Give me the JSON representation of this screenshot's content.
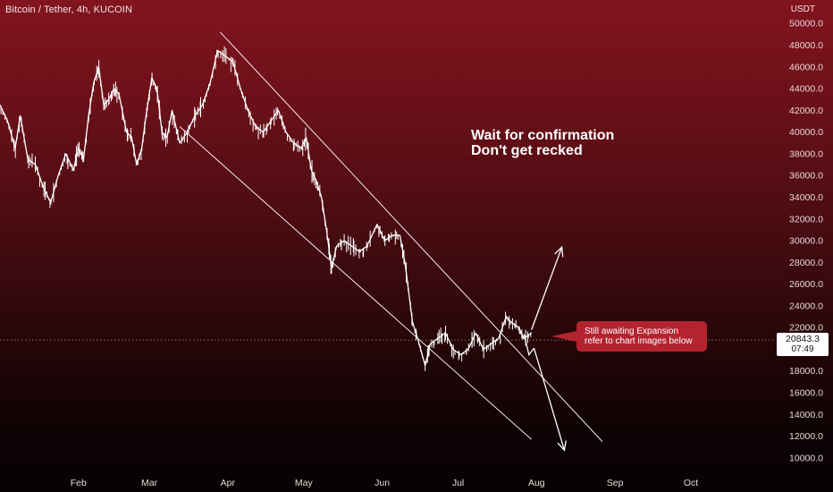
{
  "header": {
    "symbol_title": "Bitcoin / Tether, 4h, KUCOIN",
    "currency": "USDT"
  },
  "annotations": {
    "headline_line1": "Wait for confirmation",
    "headline_line2": "Don't get recked",
    "callout_line1": "Still awaiting Expansion",
    "callout_line2": "refer to chart images below"
  },
  "last_price": {
    "value": "20843.3",
    "countdown": "07:49",
    "numeric": 20843.3
  },
  "colors": {
    "background_top": "#82141f",
    "background_bottom": "#080202",
    "candle_line": "#ffffff",
    "callout": "#b3242f",
    "axis_text": "#e8dada"
  },
  "chart_data": {
    "type": "line",
    "title": "Bitcoin / Tether, 4h, KUCOIN",
    "xlabel": "",
    "ylabel": "USDT",
    "ylim": [
      9000,
      51500
    ],
    "yticks": [
      10000,
      12000,
      14000,
      16000,
      18000,
      20000,
      22000,
      24000,
      26000,
      28000,
      30000,
      32000,
      34000,
      36000,
      38000,
      40000,
      42000,
      44000,
      46000,
      48000,
      50000
    ],
    "ytick_labels": [
      "10000.0",
      "12000.0",
      "14000.0",
      "16000.0",
      "18000.0",
      "20000.0",
      "22000.0",
      "24000.0",
      "26000.0",
      "28000.0",
      "30000.0",
      "32000.0",
      "34000.0",
      "36000.0",
      "38000.0",
      "40000.0",
      "42000.0",
      "44000.0",
      "46000.0",
      "48000.0",
      "50000.0"
    ],
    "x_domain": [
      "2022-01-01",
      "2022-10-31"
    ],
    "xticks": [
      {
        "date": "2022-02-01",
        "label": "Feb"
      },
      {
        "date": "2022-03-01",
        "label": "Mar"
      },
      {
        "date": "2022-04-01",
        "label": "Apr"
      },
      {
        "date": "2022-05-01",
        "label": "May"
      },
      {
        "date": "2022-06-01",
        "label": "Jun"
      },
      {
        "date": "2022-07-01",
        "label": "Jul"
      },
      {
        "date": "2022-08-01",
        "label": "Aug"
      },
      {
        "date": "2022-09-01",
        "label": "Sep"
      },
      {
        "date": "2022-10-01",
        "label": "Oct"
      }
    ],
    "series": [
      {
        "values": [
          [
            "2022-01-01",
            42500
          ],
          [
            "2022-01-04",
            41000
          ],
          [
            "2022-01-07",
            38500
          ],
          [
            "2022-01-09",
            41500
          ],
          [
            "2022-01-12",
            37500
          ],
          [
            "2022-01-15",
            37000
          ],
          [
            "2022-01-18",
            35000
          ],
          [
            "2022-01-21",
            33500
          ],
          [
            "2022-01-24",
            36000
          ],
          [
            "2022-01-27",
            38000
          ],
          [
            "2022-01-30",
            36500
          ],
          [
            "2022-02-01",
            38500
          ],
          [
            "2022-02-03",
            37500
          ],
          [
            "2022-02-05",
            41500
          ],
          [
            "2022-02-07",
            44500
          ],
          [
            "2022-02-09",
            46000
          ],
          [
            "2022-02-11",
            42500
          ],
          [
            "2022-02-13",
            43000
          ],
          [
            "2022-02-15",
            44000
          ],
          [
            "2022-02-17",
            43500
          ],
          [
            "2022-02-20",
            40000
          ],
          [
            "2022-02-22",
            39500
          ],
          [
            "2022-02-24",
            37000
          ],
          [
            "2022-02-26",
            38500
          ],
          [
            "2022-02-28",
            42000
          ],
          [
            "2022-03-02",
            45000
          ],
          [
            "2022-03-04",
            44000
          ],
          [
            "2022-03-06",
            40000
          ],
          [
            "2022-03-08",
            39500
          ],
          [
            "2022-03-10",
            42000
          ],
          [
            "2022-03-13",
            39000
          ],
          [
            "2022-03-16",
            40000
          ],
          [
            "2022-03-19",
            41500
          ],
          [
            "2022-03-22",
            42500
          ],
          [
            "2022-03-25",
            44500
          ],
          [
            "2022-03-28",
            47500
          ],
          [
            "2022-03-31",
            47000
          ],
          [
            "2022-04-03",
            46500
          ],
          [
            "2022-04-06",
            44000
          ],
          [
            "2022-04-09",
            42000
          ],
          [
            "2022-04-12",
            40500
          ],
          [
            "2022-04-15",
            40000
          ],
          [
            "2022-04-18",
            41000
          ],
          [
            "2022-04-21",
            42000
          ],
          [
            "2022-04-24",
            40000
          ],
          [
            "2022-04-27",
            39000
          ],
          [
            "2022-04-30",
            38500
          ],
          [
            "2022-05-02",
            39500
          ],
          [
            "2022-05-04",
            36500
          ],
          [
            "2022-05-06",
            35500
          ],
          [
            "2022-05-08",
            34000
          ],
          [
            "2022-05-10",
            31000
          ],
          [
            "2022-05-12",
            27500
          ],
          [
            "2022-05-14",
            29500
          ],
          [
            "2022-05-17",
            30000
          ],
          [
            "2022-05-20",
            29500
          ],
          [
            "2022-05-23",
            29000
          ],
          [
            "2022-05-26",
            29500
          ],
          [
            "2022-05-30",
            31500
          ],
          [
            "2022-06-02",
            30000
          ],
          [
            "2022-06-05",
            30500
          ],
          [
            "2022-06-08",
            30500
          ],
          [
            "2022-06-10",
            28000
          ],
          [
            "2022-06-13",
            22500
          ],
          [
            "2022-06-15",
            21000
          ],
          [
            "2022-06-18",
            18500
          ],
          [
            "2022-06-20",
            20500
          ],
          [
            "2022-06-23",
            21000
          ],
          [
            "2022-06-26",
            21500
          ],
          [
            "2022-06-29",
            20000
          ],
          [
            "2022-07-02",
            19500
          ],
          [
            "2022-07-05",
            20000
          ],
          [
            "2022-07-08",
            21500
          ],
          [
            "2022-07-11",
            20000
          ],
          [
            "2022-07-14",
            20500
          ],
          [
            "2022-07-17",
            21000
          ],
          [
            "2022-07-20",
            23000
          ],
          [
            "2022-07-22",
            22500
          ],
          [
            "2022-07-25",
            22000
          ],
          [
            "2022-07-27",
            21000
          ],
          [
            "2022-07-30",
            21500
          ]
        ]
      }
    ],
    "channel_lines": [
      {
        "from": [
          "2022-03-29",
          49200
        ],
        "to": [
          "2022-08-27",
          11500
        ]
      },
      {
        "from": [
          "2022-03-13",
          40500
        ],
        "to": [
          "2022-07-30",
          11700
        ]
      }
    ],
    "arrows": [
      {
        "from": [
          "2022-07-30",
          21800
        ],
        "to": [
          "2022-08-11",
          29400
        ]
      },
      {
        "from": [
          "2022-07-31",
          20100
        ],
        "to": [
          "2022-08-12",
          10700
        ]
      }
    ],
    "breakdown_mark": [
      [
        "2022-07-27",
        21400
      ],
      [
        "2022-07-29",
        19500
      ],
      [
        "2022-07-31",
        20100
      ]
    ],
    "current_price_line": 20843.3,
    "grid": false,
    "legend": "none"
  }
}
